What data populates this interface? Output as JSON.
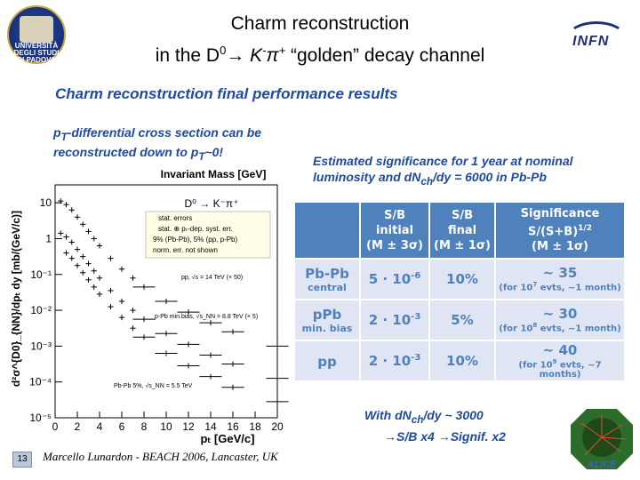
{
  "header": {
    "university_logo_lines": [
      "UNIVERSITÀ",
      "DEGLI STUDI",
      "DI PADOVA"
    ],
    "title_line1": "Charm reconstruction",
    "title_line2_prefix": "in the D",
    "title_line2_sup0": "0",
    "title_line2_arrow": "→",
    "title_line2_K": " K",
    "title_line2_supminus": "-",
    "title_line2_pi": "π",
    "title_line2_supplus": "+",
    "title_line2_suffix": " “golden” decay channel",
    "infn_logo": "INFN"
  },
  "subtitle": "Charm reconstruction final performance results",
  "pt_text": {
    "p1": "p",
    "sub1": "T",
    "p2": "-differential cross section can be reconstructed down to p",
    "sub2": "T",
    "p3": "~0!"
  },
  "est_text": {
    "line1": "Estimated significance for 1 year at nominal",
    "line2_a": "luminosity and dN",
    "line2_sub": "ch",
    "line2_b": "/dy = 6000 in Pb-Pb"
  },
  "table": {
    "headers": [
      {
        "l1": "S/B",
        "l2": "initial",
        "l3": "(M ± 3σ)"
      },
      {
        "l1": "S/B",
        "l2": "final",
        "l3": "(M ± 1σ)"
      },
      {
        "l1": "Significance",
        "l2": "S/(S+B)",
        "l2sup": "1/2",
        "l3": "(M ± 1σ)"
      }
    ],
    "rows": [
      {
        "label": "Pb-Pb",
        "sub": "central",
        "initial": "5 · 10",
        "initial_exp": "-6",
        "final": "10%",
        "sig": "~ 35",
        "sig_note": "(for 10",
        "sig_note_exp": "7",
        "sig_note_end": " evts, ~1 month)"
      },
      {
        "label": "pPb",
        "sub": "min. bias",
        "initial": "2 · 10",
        "initial_exp": "-3",
        "final": "5%",
        "sig": "~ 30",
        "sig_note": "(for 10",
        "sig_note_exp": "8",
        "sig_note_end": " evts, ~1 month)"
      },
      {
        "label": "pp",
        "sub": "",
        "initial": "2 · 10",
        "initial_exp": "-3",
        "final": "10%",
        "sig": "~ 40",
        "sig_note": "(for 10",
        "sig_note_exp": "9",
        "sig_note_end": " evts, ~7 months)"
      }
    ]
  },
  "with_text": {
    "a": "With dN",
    "sub": "ch",
    "b": "/dy ~ 3000",
    "line2a": "S/B x4",
    "line2b": "Signif. x2",
    "arrow": "→"
  },
  "footer": {
    "page": "13",
    "text": "Marcello Lunardon  -  BEACH 2006,  Lancaster, UK"
  },
  "alice_logo": "ALICE",
  "chart_data": {
    "type": "scatter",
    "title": "Invariant Mass [GeV]",
    "xlabel": "pₜ [GeV/c]",
    "ylabel": "d²σ^{D0}_{NN}/dpₜ dy [mb/(GeV/c)]",
    "xlim": [
      0,
      20
    ],
    "ylim_log10": [
      -5,
      1.5
    ],
    "x_ticks": [
      "0",
      "2",
      "4",
      "6",
      "8",
      "10",
      "12",
      "14",
      "16",
      "18",
      "20"
    ],
    "y_ticks": [
      "10",
      "1",
      "10⁻¹",
      "10⁻²",
      "10⁻³",
      "10⁻⁴",
      "10⁻⁵"
    ],
    "decay_label": "D⁰ → K⁻π⁺",
    "legend": [
      "stat. errors",
      "stat. ⊕ pₜ-dep. syst. err.",
      "9% (Pb-Pb), 5% (pp, p-Pb)",
      "norm. err. not shown"
    ],
    "series": [
      {
        "name": "pp, √s = 14 TeV (× 50)",
        "x": [
          0.5,
          1,
          1.5,
          2,
          2.5,
          3,
          3.5,
          4,
          5,
          6,
          7,
          8,
          10,
          12,
          14,
          16,
          20
        ],
        "log10_y": [
          1.05,
          0.95,
          0.8,
          0.6,
          0.4,
          0.2,
          0.0,
          -0.2,
          -0.55,
          -0.85,
          -1.1,
          -1.35,
          -1.75,
          -2.05,
          -2.35,
          -2.6,
          -3.0
        ]
      },
      {
        "name": "p-Pb min.bias, √s_NN = 8.8 TeV (× 5)",
        "x": [
          0.5,
          1,
          1.5,
          2,
          2.5,
          3,
          3.5,
          4,
          5,
          6,
          7,
          8,
          10,
          12,
          14,
          16,
          20
        ],
        "log10_y": [
          0.15,
          0.05,
          -0.1,
          -0.3,
          -0.5,
          -0.7,
          -0.9,
          -1.1,
          -1.45,
          -1.75,
          -2.0,
          -2.25,
          -2.65,
          -2.95,
          -3.25,
          -3.5,
          -3.9
        ]
      },
      {
        "name": "Pb-Pb 5%, √s_NN = 5.5 TeV",
        "x": [
          1,
          1.5,
          2,
          2.5,
          3,
          3.5,
          4,
          5,
          6,
          7,
          8,
          10,
          12,
          14,
          16,
          20
        ],
        "log10_y": [
          -0.4,
          -0.55,
          -0.75,
          -0.95,
          -1.15,
          -1.35,
          -1.55,
          -1.9,
          -2.2,
          -2.5,
          -2.75,
          -3.2,
          -3.55,
          -3.85,
          -4.15,
          -4.55
        ]
      }
    ]
  }
}
